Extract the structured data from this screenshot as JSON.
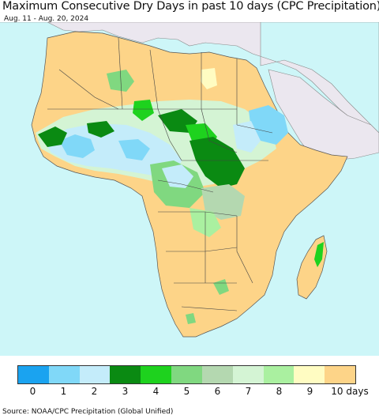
{
  "header": {
    "title": "Maximum Consecutive Dry Days in past 10 days (CPC Precipitation)",
    "date_range": "Aug. 11 - Aug. 20, 2024"
  },
  "legend": {
    "colors": [
      "#1aa3f0",
      "#80d8f8",
      "#c4ecfa",
      "#0a8a12",
      "#1ed21e",
      "#80d880",
      "#b4d8b0",
      "#d4f4d4",
      "#aaf0a0",
      "#fffcc2",
      "#fdd488"
    ],
    "labels": [
      "0",
      "1",
      "2",
      "3",
      "4",
      "5",
      "6",
      "7",
      "8",
      "9",
      "10 days"
    ]
  },
  "map": {
    "ocean_color": "#cdf6f8",
    "non_africa_color": "#ebe7ef",
    "base_land_color": "#fdd488"
  },
  "footer": {
    "source": "Source: NOAA/CPC Precipitation (Global Unified)"
  }
}
